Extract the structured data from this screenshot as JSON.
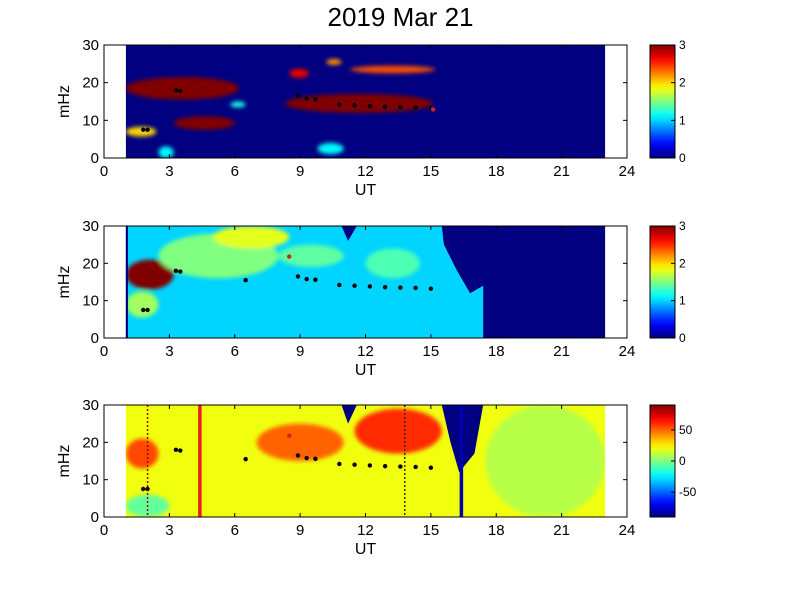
{
  "title": "2019 Mar 21",
  "chart_data": [
    {
      "type": "heatmap",
      "xlabel": "UT",
      "ylabel": "mHz",
      "xlim": [
        0,
        24
      ],
      "ylim": [
        0,
        30
      ],
      "xticks": [
        0,
        3,
        6,
        9,
        12,
        15,
        18,
        21,
        24
      ],
      "yticks": [
        0,
        10,
        20,
        30
      ],
      "data_xrange": [
        1,
        23
      ],
      "colorbar": {
        "range": [
          0,
          3
        ],
        "ticks": [
          0,
          1,
          2,
          3
        ]
      },
      "background_value": 0,
      "blobs": [
        {
          "x": 1.0,
          "x2": 6.2,
          "y": 18.5,
          "ry": 3.0,
          "v": 3
        },
        {
          "x": 3.2,
          "x2": 6.0,
          "y": 9.3,
          "ry": 1.8,
          "v": 3
        },
        {
          "x": 8.3,
          "x2": 15.1,
          "y": 14.5,
          "ry": 2.5,
          "v": 3
        },
        {
          "x": 11.3,
          "x2": 15.2,
          "y": 23.5,
          "ry": 1.0,
          "v": 2.4
        },
        {
          "x": 8.5,
          "x2": 9.4,
          "y": 22.5,
          "ry": 1.2,
          "v": 2.7
        },
        {
          "x": 10.2,
          "x2": 10.9,
          "y": 25.5,
          "ry": 0.8,
          "v": 2.2
        },
        {
          "x": 1.0,
          "x2": 2.4,
          "y": 7.0,
          "ry": 1.3,
          "v": 2.0
        },
        {
          "x": 5.8,
          "x2": 6.5,
          "y": 14.2,
          "ry": 0.8,
          "v": 1.2
        },
        {
          "x": 2.5,
          "x2": 3.2,
          "y": 1.5,
          "ry": 1.6,
          "v": 1.1
        },
        {
          "x": 9.8,
          "x2": 11.0,
          "y": 2.5,
          "ry": 1.5,
          "v": 1.1
        }
      ],
      "markers": [
        [
          1.8,
          7.5
        ],
        [
          2.0,
          7.5
        ],
        [
          3.3,
          18.0
        ],
        [
          3.5,
          17.8
        ],
        [
          8.9,
          16.5
        ],
        [
          9.3,
          15.8
        ],
        [
          9.7,
          15.6
        ],
        [
          10.8,
          14.2
        ],
        [
          11.5,
          14.0
        ],
        [
          12.2,
          13.8
        ],
        [
          12.9,
          13.6
        ],
        [
          13.6,
          13.5
        ],
        [
          14.3,
          13.4
        ],
        [
          15.0,
          13.2
        ]
      ],
      "red_markers": [
        [
          15.1,
          12.9
        ]
      ]
    },
    {
      "type": "heatmap",
      "xlabel": "UT",
      "ylabel": "mHz",
      "xlim": [
        0,
        24
      ],
      "ylim": [
        0,
        30
      ],
      "xticks": [
        0,
        3,
        6,
        9,
        12,
        15,
        18,
        21,
        24
      ],
      "yticks": [
        0,
        10,
        20,
        30
      ],
      "data_xrange": [
        1,
        23
      ],
      "colorbar": {
        "range": [
          0,
          3
        ],
        "ticks": [
          0,
          1,
          2,
          3
        ]
      },
      "background_value": 1.0,
      "blobs": [
        {
          "x": 1.0,
          "x2": 3.2,
          "y": 17.0,
          "ry": 4.0,
          "v": 3
        },
        {
          "x": 1.0,
          "x2": 2.5,
          "y": 9.0,
          "ry": 3.5,
          "v": 1.6
        },
        {
          "x": 2.5,
          "x2": 8.0,
          "y": 22.0,
          "ry": 6.0,
          "v": 1.5
        },
        {
          "x": 5.0,
          "x2": 8.5,
          "y": 27.0,
          "ry": 3.0,
          "v": 1.8
        },
        {
          "x": 8.0,
          "x2": 11.0,
          "y": 22.0,
          "ry": 3.0,
          "v": 1.4
        },
        {
          "x": 12.0,
          "x2": 14.5,
          "y": 20.0,
          "ry": 4.0,
          "v": 1.35
        }
      ],
      "masks": [
        {
          "polygon": [
            [
              0.9,
              0
            ],
            [
              1.1,
              0
            ],
            [
              1.1,
              30
            ],
            [
              0.9,
              30
            ]
          ]
        },
        {
          "polygon": [
            [
              10.9,
              30
            ],
            [
              11.2,
              26
            ],
            [
              11.6,
              30
            ]
          ]
        },
        {
          "polygon": [
            [
              15.5,
              30
            ],
            [
              17.4,
              30
            ],
            [
              17.4,
              0
            ],
            [
              23,
              0
            ],
            [
              23,
              30
            ],
            [
              17.4,
              30
            ],
            [
              17.4,
              14
            ],
            [
              16.8,
              12
            ],
            [
              16.2,
              18
            ],
            [
              15.6,
              25
            ]
          ]
        }
      ],
      "markers": [
        [
          1.8,
          7.5
        ],
        [
          2.0,
          7.5
        ],
        [
          3.3,
          18.0
        ],
        [
          3.5,
          17.8
        ],
        [
          6.5,
          15.5
        ],
        [
          8.9,
          16.5
        ],
        [
          9.3,
          15.8
        ],
        [
          9.7,
          15.6
        ],
        [
          10.8,
          14.2
        ],
        [
          11.5,
          14.0
        ],
        [
          12.2,
          13.8
        ],
        [
          12.9,
          13.6
        ],
        [
          13.6,
          13.5
        ],
        [
          14.3,
          13.4
        ],
        [
          15.0,
          13.2
        ]
      ],
      "red_markers": [
        [
          8.5,
          21.8
        ]
      ]
    },
    {
      "type": "heatmap",
      "xlabel": "UT",
      "ylabel": "mHz",
      "xlim": [
        0,
        24
      ],
      "ylim": [
        0,
        30
      ],
      "xticks": [
        0,
        3,
        6,
        9,
        12,
        15,
        18,
        21,
        24
      ],
      "yticks": [
        0,
        10,
        20,
        30
      ],
      "data_xrange": [
        1,
        23
      ],
      "colorbar": {
        "range": [
          -90,
          90
        ],
        "ticks": [
          -50,
          0,
          50
        ]
      },
      "background_value": 20,
      "blobs": [
        {
          "x": 1.0,
          "x2": 2.5,
          "y": 17.0,
          "ry": 4.0,
          "v": 55
        },
        {
          "x": 7.0,
          "x2": 11.0,
          "y": 20.0,
          "ry": 5.0,
          "v": 50
        },
        {
          "x": 11.5,
          "x2": 15.5,
          "y": 23.0,
          "ry": 6.0,
          "v": 60
        },
        {
          "x": 17.5,
          "x2": 23.0,
          "y": 15.0,
          "ry": 15.0,
          "v": 10
        },
        {
          "x": 1.0,
          "x2": 3.0,
          "y": 3.0,
          "ry": 3.0,
          "v": -5
        }
      ],
      "masks": [
        {
          "polygon": [
            [
              10.9,
              30
            ],
            [
              11.2,
              25
            ],
            [
              11.6,
              30
            ]
          ]
        },
        {
          "polygon": [
            [
              15.5,
              30
            ],
            [
              17.4,
              30
            ],
            [
              17.0,
              17
            ],
            [
              16.3,
              12
            ],
            [
              15.9,
              20
            ]
          ]
        }
      ],
      "vlines": [
        {
          "x": 4.4,
          "style": "solid",
          "color": "#e6201a"
        },
        {
          "x": 16.4,
          "style": "solid",
          "color": "#0000b3"
        },
        {
          "x": 2.0,
          "style": "dotted",
          "color": "#8b1010"
        },
        {
          "x": 13.8,
          "style": "dotted",
          "color": "#303030"
        }
      ],
      "markers": [
        [
          1.8,
          7.5
        ],
        [
          2.0,
          7.5
        ],
        [
          3.3,
          18.0
        ],
        [
          3.5,
          17.8
        ],
        [
          6.5,
          15.5
        ],
        [
          8.9,
          16.5
        ],
        [
          9.3,
          15.8
        ],
        [
          9.7,
          15.6
        ],
        [
          10.8,
          14.2
        ],
        [
          11.5,
          14.0
        ],
        [
          12.2,
          13.8
        ],
        [
          12.9,
          13.6
        ],
        [
          13.6,
          13.5
        ],
        [
          14.3,
          13.4
        ],
        [
          15.0,
          13.2
        ]
      ],
      "red_markers": [
        [
          8.5,
          21.8
        ]
      ]
    }
  ]
}
